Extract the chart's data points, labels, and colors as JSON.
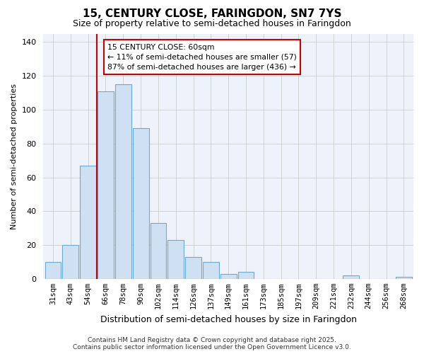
{
  "title": "15, CENTURY CLOSE, FARINGDON, SN7 7YS",
  "subtitle": "Size of property relative to semi-detached houses in Faringdon",
  "xlabel": "Distribution of semi-detached houses by size in Faringdon",
  "ylabel": "Number of semi-detached properties",
  "bar_labels": [
    "31sqm",
    "43sqm",
    "54sqm",
    "66sqm",
    "78sqm",
    "90sqm",
    "102sqm",
    "114sqm",
    "126sqm",
    "137sqm",
    "149sqm",
    "161sqm",
    "173sqm",
    "185sqm",
    "197sqm",
    "209sqm",
    "221sqm",
    "232sqm",
    "244sqm",
    "256sqm",
    "268sqm"
  ],
  "bar_values": [
    10,
    20,
    67,
    111,
    115,
    89,
    33,
    23,
    13,
    10,
    3,
    4,
    0,
    0,
    0,
    0,
    0,
    2,
    0,
    0,
    1
  ],
  "bar_color": "#cfe0f3",
  "bar_edge_color": "#6aabd2",
  "vline_x": 2.5,
  "vline_color": "#cc0000",
  "annotation_title": "15 CENTURY CLOSE: 60sqm",
  "annotation_line1": "← 11% of semi-detached houses are smaller (57)",
  "annotation_line2": "87% of semi-detached houses are larger (436) →",
  "ylim": [
    0,
    145
  ],
  "yticks": [
    0,
    20,
    40,
    60,
    80,
    100,
    120,
    140
  ],
  "footer1": "Contains HM Land Registry data © Crown copyright and database right 2025.",
  "footer2": "Contains public sector information licensed under the Open Government Licence v3.0.",
  "bg_color": "#ffffff",
  "plot_bg_color": "#eef2fa",
  "grid_color": "#cccccc",
  "title_fontsize": 11,
  "subtitle_fontsize": 9,
  "ylabel_fontsize": 8,
  "xlabel_fontsize": 9
}
